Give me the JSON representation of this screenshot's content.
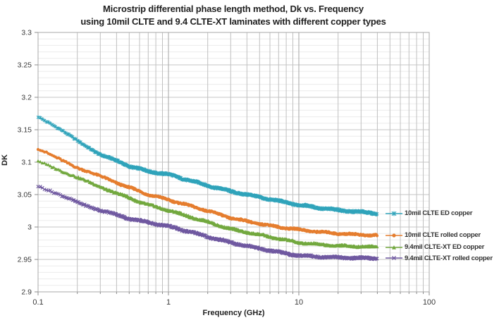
{
  "chart": {
    "title_line1": "Microstrip differential phase length method, Dk vs. Frequency",
    "title_line2": "using 10mil CLTE and 9.4 CLTE-XT laminates with different copper types"
  },
  "chart_data": {
    "type": "scatter",
    "title": "Microstrip differential phase length method, Dk vs. Frequency using 10mil CLTE and 9.4 CLTE-XT laminates with different copper types",
    "xlabel": "Frequency (GHz)",
    "ylabel": "DK",
    "x_scale": "log",
    "xlim": [
      0.1,
      100
    ],
    "ylim": [
      2.9,
      3.3
    ],
    "x_ticks": [
      {
        "value": 0.1,
        "label": "0.1"
      },
      {
        "value": 1,
        "label": "1"
      },
      {
        "value": 10,
        "label": "10"
      },
      {
        "value": 100,
        "label": "100"
      }
    ],
    "y_ticks": [
      {
        "value": 3.3,
        "label": "3.3"
      },
      {
        "value": 3.25,
        "label": "3.25"
      },
      {
        "value": 3.2,
        "label": "3.2"
      },
      {
        "value": 3.15,
        "label": "3.15"
      },
      {
        "value": 3.1,
        "label": "3.1"
      },
      {
        "value": 3.05,
        "label": "3.05"
      },
      {
        "value": 3.0,
        "label": "3"
      },
      {
        "value": 2.95,
        "label": "2.95"
      },
      {
        "value": 2.9,
        "label": "2.9"
      }
    ],
    "y_minor_step": 0.01,
    "grid": {
      "border_color": "#a9a9a9",
      "major_h_color": "#c4c4c4",
      "minor_h_color": "#ebebeb",
      "major_v_color": "#a6a6a6",
      "minor_v_color": "#c0c0c0",
      "tick_color": "#8c8c8c",
      "tick_label_color": "#3a3a3a"
    },
    "legend_position": "right-of-curve-ends",
    "series": [
      {
        "name": "10mil CLTE ED copper",
        "color": "#2fa3ba",
        "marker": "asterisk",
        "points": [
          [
            0.1,
            3.17
          ],
          [
            0.15,
            3.149
          ],
          [
            0.2,
            3.133
          ],
          [
            0.3,
            3.112
          ],
          [
            0.5,
            3.094
          ],
          [
            0.7,
            3.086
          ],
          [
            1.0,
            3.081
          ],
          [
            1.5,
            3.071
          ],
          [
            2,
            3.064
          ],
          [
            3,
            3.055
          ],
          [
            5,
            3.046
          ],
          [
            7,
            3.04
          ],
          [
            10,
            3.034
          ],
          [
            15,
            3.029
          ],
          [
            20,
            3.026
          ],
          [
            30,
            3.023
          ],
          [
            40,
            3.021
          ]
        ]
      },
      {
        "name": "10mil CLTE rolled copper",
        "color": "#e57d2e",
        "marker": "circle",
        "points": [
          [
            0.1,
            3.12
          ],
          [
            0.15,
            3.104
          ],
          [
            0.2,
            3.092
          ],
          [
            0.3,
            3.078
          ],
          [
            0.5,
            3.061
          ],
          [
            0.7,
            3.05
          ],
          [
            1.0,
            3.042
          ],
          [
            1.5,
            3.032
          ],
          [
            2,
            3.025
          ],
          [
            3,
            3.014
          ],
          [
            5,
            3.005
          ],
          [
            7,
            3.0
          ],
          [
            10,
            2.996
          ],
          [
            15,
            2.992
          ],
          [
            20,
            2.99
          ],
          [
            30,
            2.988
          ],
          [
            40,
            2.987
          ]
        ]
      },
      {
        "name": "9.4mil CLTE-XT ED copper",
        "color": "#72a83e",
        "marker": "triangle",
        "points": [
          [
            0.1,
            3.103
          ],
          [
            0.15,
            3.087
          ],
          [
            0.2,
            3.076
          ],
          [
            0.3,
            3.062
          ],
          [
            0.5,
            3.045
          ],
          [
            0.7,
            3.034
          ],
          [
            1.0,
            3.026
          ],
          [
            1.5,
            3.015
          ],
          [
            2,
            3.008
          ],
          [
            3,
            2.997
          ],
          [
            5,
            2.988
          ],
          [
            7,
            2.982
          ],
          [
            10,
            2.976
          ],
          [
            15,
            2.973
          ],
          [
            20,
            2.971
          ],
          [
            30,
            2.97
          ],
          [
            40,
            2.969
          ]
        ]
      },
      {
        "name": "9.4mil CLTE-XT rolled copper",
        "color": "#6f58a0",
        "marker": "x",
        "points": [
          [
            0.1,
            3.063
          ],
          [
            0.15,
            3.048
          ],
          [
            0.2,
            3.038
          ],
          [
            0.3,
            3.026
          ],
          [
            0.5,
            3.013
          ],
          [
            0.7,
            3.007
          ],
          [
            1.0,
            3.001
          ],
          [
            1.5,
            2.992
          ],
          [
            2,
            2.985
          ],
          [
            3,
            2.976
          ],
          [
            5,
            2.967
          ],
          [
            7,
            2.961
          ],
          [
            10,
            2.956
          ],
          [
            15,
            2.954
          ],
          [
            20,
            2.953
          ],
          [
            30,
            2.952
          ],
          [
            40,
            2.952
          ]
        ]
      }
    ]
  }
}
